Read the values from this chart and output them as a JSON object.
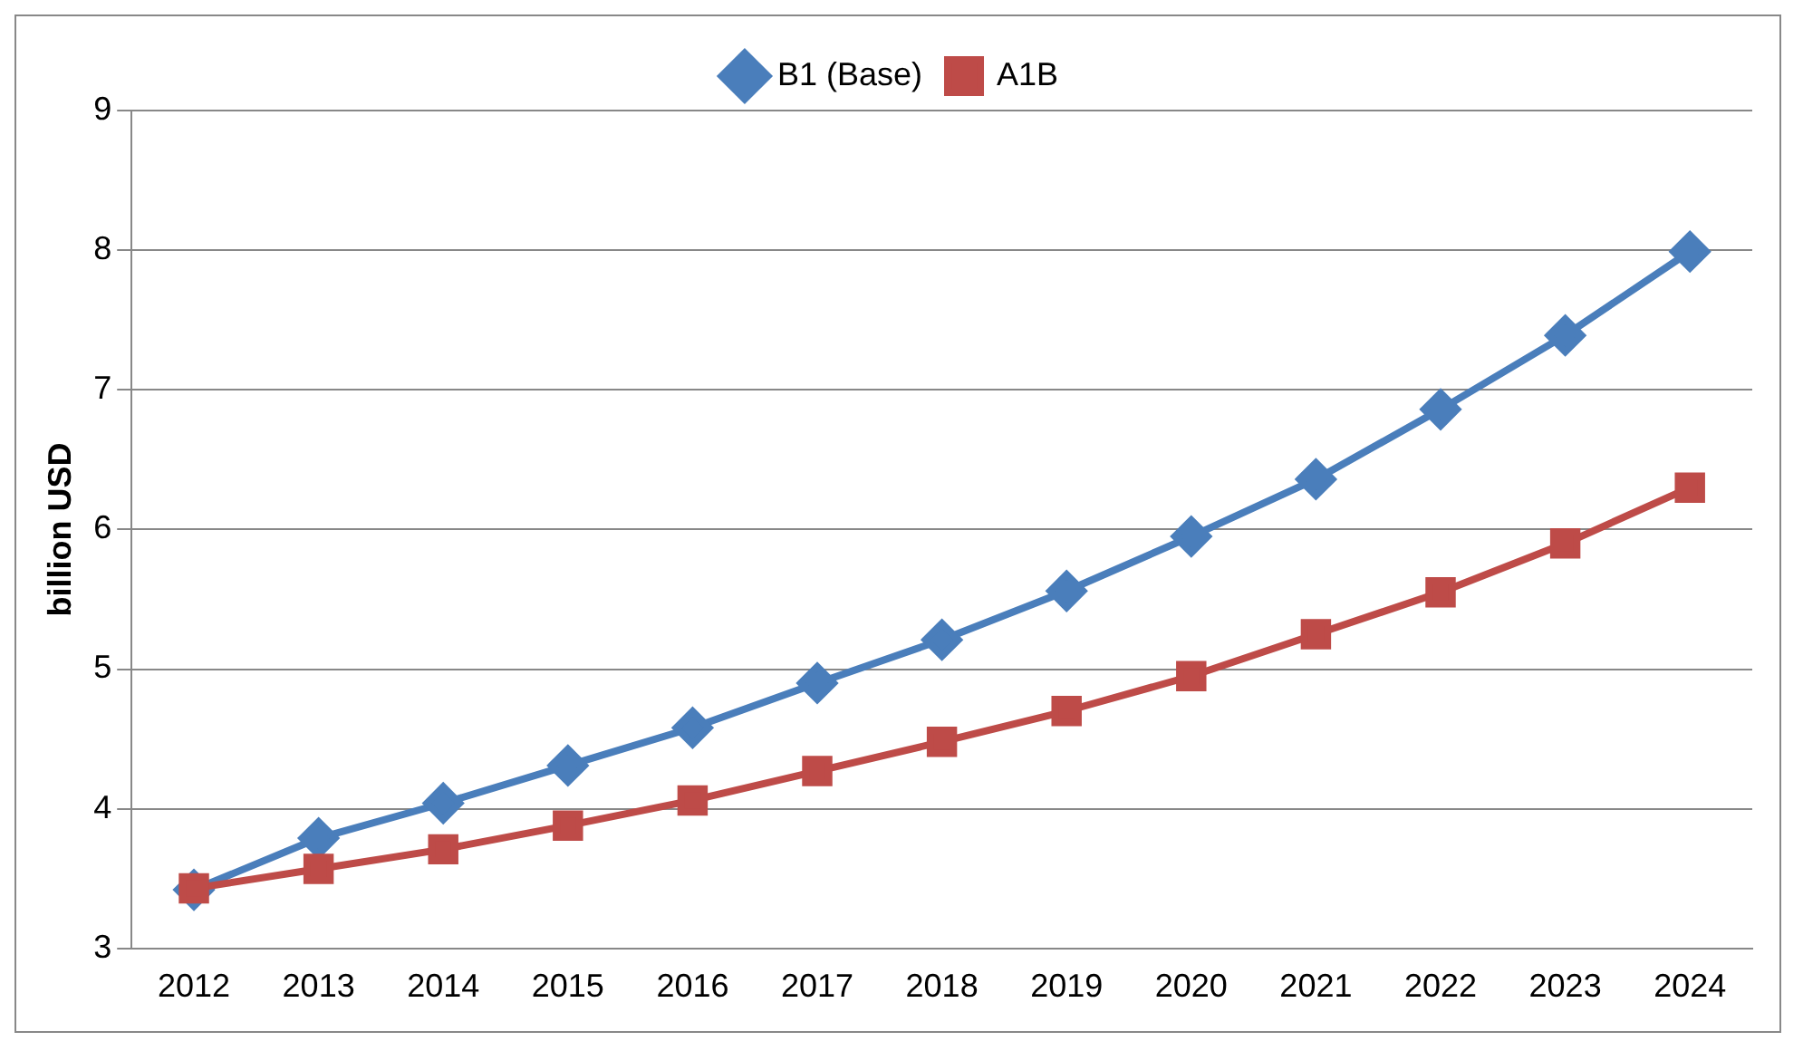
{
  "chart_data": {
    "type": "line",
    "ylabel": "billion USD",
    "categories": [
      "2012",
      "2013",
      "2014",
      "2015",
      "2016",
      "2017",
      "2018",
      "2019",
      "2020",
      "2021",
      "2022",
      "2023",
      "2024"
    ],
    "series": [
      {
        "name": "B1 (Base)",
        "color": "#4a7ebb",
        "marker": "diamond",
        "values": [
          3.42,
          3.79,
          4.04,
          4.31,
          4.58,
          4.9,
          5.21,
          5.56,
          5.95,
          6.36,
          6.86,
          7.39,
          7.99
        ]
      },
      {
        "name": "A1B",
        "color": "#be4b48",
        "marker": "square",
        "values": [
          3.43,
          3.57,
          3.71,
          3.88,
          4.06,
          4.27,
          4.48,
          4.7,
          4.95,
          5.25,
          5.55,
          5.9,
          6.3
        ]
      }
    ],
    "ylim": [
      3,
      9
    ],
    "yticks": [
      3,
      4,
      5,
      6,
      7,
      8,
      9
    ],
    "grid": "y",
    "legend": "top",
    "line_style": "solid"
  }
}
